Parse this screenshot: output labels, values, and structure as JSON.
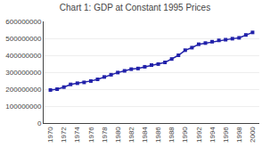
{
  "chart_data": {
    "type": "line",
    "title": "Chart 1: GDP at Constant 1995 Prices",
    "x": [
      1970,
      1971,
      1972,
      1973,
      1974,
      1975,
      1976,
      1977,
      1978,
      1979,
      1980,
      1981,
      1982,
      1983,
      1984,
      1985,
      1986,
      1987,
      1988,
      1989,
      1990,
      1991,
      1992,
      1993,
      1994,
      1995,
      1996,
      1997,
      1998,
      1999,
      2000
    ],
    "values": [
      195000000,
      200000000,
      212000000,
      228000000,
      235000000,
      240000000,
      248000000,
      258000000,
      272000000,
      285000000,
      298000000,
      308000000,
      318000000,
      322000000,
      332000000,
      342000000,
      348000000,
      358000000,
      378000000,
      400000000,
      430000000,
      445000000,
      465000000,
      472000000,
      480000000,
      488000000,
      492000000,
      498000000,
      503000000,
      520000000,
      535000000
    ],
    "color": "#2222aa",
    "marker": "square",
    "xlim": [
      1969,
      2001
    ],
    "xticks": [
      1970,
      1972,
      1974,
      1976,
      1978,
      1980,
      1982,
      1984,
      1986,
      1988,
      1990,
      1992,
      1994,
      1996,
      1998,
      2000
    ],
    "ylim": [
      0,
      600000000
    ],
    "yticks": [
      0,
      100000000,
      200000000,
      300000000,
      400000000,
      500000000,
      600000000
    ],
    "grid": "y"
  }
}
